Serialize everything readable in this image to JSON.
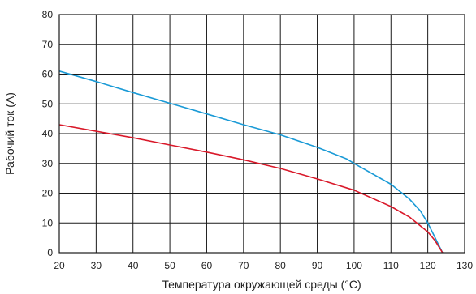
{
  "chart_data": {
    "type": "line",
    "title": "",
    "xlabel": "Температура окружающей среды (°C)",
    "ylabel": "Рабочий ток (A)",
    "xlim": [
      20,
      130
    ],
    "ylim": [
      0,
      80
    ],
    "xticks": [
      20,
      30,
      40,
      50,
      60,
      70,
      80,
      90,
      100,
      110,
      120,
      130
    ],
    "yticks": [
      0,
      10,
      20,
      30,
      40,
      50,
      60,
      70,
      80
    ],
    "grid": true,
    "legend": "none",
    "series": [
      {
        "color": "#1a9ad6",
        "x": [
          20,
          30,
          40,
          50,
          60,
          70,
          80,
          90,
          98,
          100,
          110,
          115,
          118,
          120,
          122,
          123,
          124
        ],
        "y": [
          61,
          57.5,
          53.8,
          50.2,
          46.6,
          43,
          39.6,
          35.4,
          31.5,
          30,
          23,
          18,
          14,
          10,
          5,
          2.5,
          0
        ]
      },
      {
        "color": "#d9192a",
        "x": [
          20,
          30,
          40,
          50,
          60,
          70,
          80,
          90,
          100,
          110,
          115,
          120,
          122,
          123,
          124
        ],
        "y": [
          43,
          40.8,
          38.6,
          36.2,
          33.8,
          31.2,
          28.3,
          24.8,
          21,
          15.5,
          12,
          7,
          4,
          2,
          0
        ]
      }
    ]
  }
}
